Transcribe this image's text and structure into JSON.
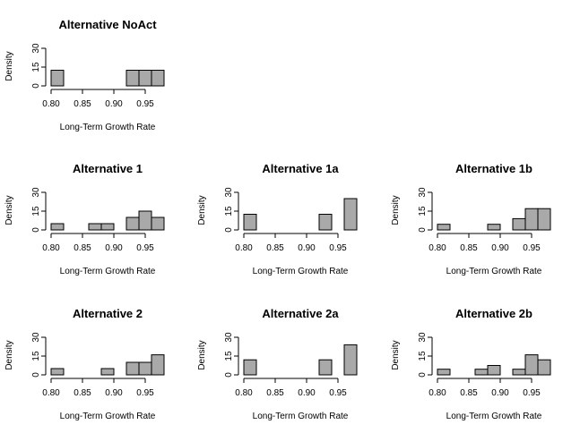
{
  "style": {
    "bar_fill": "#a9a9a9",
    "bar_stroke": "#000000",
    "background": "#ffffff"
  },
  "chart_data": [
    {
      "type": "bar",
      "title": "Alternative NoAct",
      "xlabel": "Long-Term Growth Rate",
      "ylabel": "Density",
      "bin_edges": [
        0.8,
        0.82,
        0.84,
        0.86,
        0.88,
        0.9,
        0.92,
        0.94,
        0.96,
        0.98
      ],
      "values": [
        12.5,
        0,
        0,
        0,
        0,
        0,
        12.5,
        12.5,
        12.5
      ],
      "xticks": [
        "0.80",
        "0.85",
        "0.90",
        "0.95"
      ],
      "yticks": [
        "0",
        "15",
        "30"
      ],
      "xlim": [
        0.8,
        0.98
      ],
      "ylim": [
        0,
        30
      ]
    },
    {
      "type": "bar",
      "title": "Alternative 1",
      "xlabel": "Long-Term Growth Rate",
      "ylabel": "Density",
      "bin_edges": [
        0.8,
        0.82,
        0.84,
        0.86,
        0.88,
        0.9,
        0.92,
        0.94,
        0.96,
        0.98
      ],
      "values": [
        5,
        0,
        0,
        5,
        5,
        0,
        10,
        15,
        10
      ],
      "xticks": [
        "0.80",
        "0.85",
        "0.90",
        "0.95"
      ],
      "yticks": [
        "0",
        "15",
        "30"
      ],
      "xlim": [
        0.8,
        0.98
      ],
      "ylim": [
        0,
        30
      ]
    },
    {
      "type": "bar",
      "title": "Alternative 1a",
      "xlabel": "Long-Term Growth Rate",
      "ylabel": "Density",
      "bin_edges": [
        0.8,
        0.82,
        0.84,
        0.86,
        0.88,
        0.9,
        0.92,
        0.94,
        0.96,
        0.98
      ],
      "values": [
        12.5,
        0,
        0,
        0,
        0,
        0,
        12.5,
        0,
        25
      ],
      "xticks": [
        "0.80",
        "0.85",
        "0.90",
        "0.95"
      ],
      "yticks": [
        "0",
        "15",
        "30"
      ],
      "xlim": [
        0.8,
        0.98
      ],
      "ylim": [
        0,
        30
      ]
    },
    {
      "type": "bar",
      "title": "Alternative 1b",
      "xlabel": "Long-Term Growth Rate",
      "ylabel": "Density",
      "bin_edges": [
        0.8,
        0.82,
        0.84,
        0.86,
        0.88,
        0.9,
        0.92,
        0.94,
        0.96,
        0.98
      ],
      "values": [
        4.5,
        0,
        0,
        0,
        4.5,
        0,
        9,
        17,
        17
      ],
      "xticks": [
        "0.80",
        "0.85",
        "0.90",
        "0.95"
      ],
      "yticks": [
        "0",
        "15",
        "30"
      ],
      "xlim": [
        0.8,
        0.98
      ],
      "ylim": [
        0,
        30
      ]
    },
    {
      "type": "bar",
      "title": "Alternative 2",
      "xlabel": "Long-Term Growth Rate",
      "ylabel": "Density",
      "bin_edges": [
        0.8,
        0.82,
        0.84,
        0.86,
        0.88,
        0.9,
        0.92,
        0.94,
        0.96,
        0.98
      ],
      "values": [
        5,
        0,
        0,
        0,
        5,
        0,
        10,
        10,
        16
      ],
      "xticks": [
        "0.80",
        "0.85",
        "0.90",
        "0.95"
      ],
      "yticks": [
        "0",
        "15",
        "30"
      ],
      "xlim": [
        0.8,
        0.98
      ],
      "ylim": [
        0,
        30
      ]
    },
    {
      "type": "bar",
      "title": "Alternative 2a",
      "xlabel": "Long-Term Growth Rate",
      "ylabel": "Density",
      "bin_edges": [
        0.8,
        0.82,
        0.84,
        0.86,
        0.88,
        0.9,
        0.92,
        0.94,
        0.96,
        0.98
      ],
      "values": [
        12,
        0,
        0,
        0,
        0,
        0,
        12,
        0,
        24
      ],
      "xticks": [
        "0.80",
        "0.85",
        "0.90",
        "0.95"
      ],
      "yticks": [
        "0",
        "15",
        "30"
      ],
      "xlim": [
        0.8,
        0.98
      ],
      "ylim": [
        0,
        30
      ]
    },
    {
      "type": "bar",
      "title": "Alternative 2b",
      "xlabel": "Long-Term Growth Rate",
      "ylabel": "Density",
      "bin_edges": [
        0.8,
        0.82,
        0.84,
        0.86,
        0.88,
        0.9,
        0.92,
        0.94,
        0.96,
        0.98
      ],
      "values": [
        4.5,
        0,
        0,
        4.5,
        7.5,
        0,
        4.5,
        16,
        12
      ],
      "xticks": [
        "0.80",
        "0.85",
        "0.90",
        "0.95"
      ],
      "yticks": [
        "0",
        "15",
        "30"
      ],
      "xlim": [
        0.8,
        0.98
      ],
      "ylim": [
        0,
        30
      ]
    }
  ]
}
